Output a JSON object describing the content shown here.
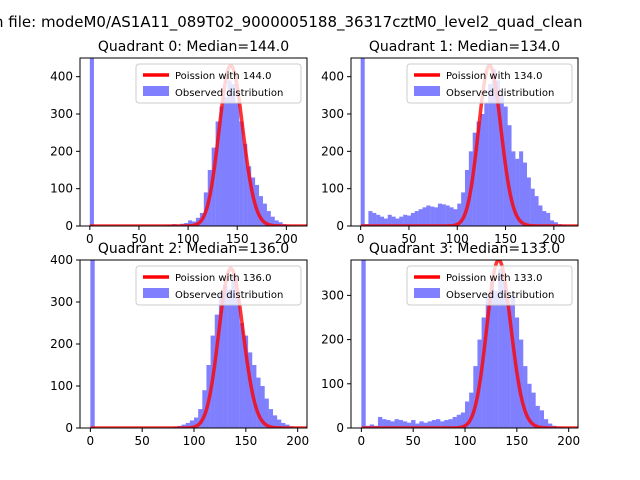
{
  "suptitle": "n file: modeM0/AS1A11_089T02_9000005188_36317cztM0_level2_quad_clean",
  "colors": {
    "observed": "#8080ff",
    "poisson": "#ff0000",
    "poisson_alpha": 0.8
  },
  "chart_data": [
    {
      "type": "bar",
      "title": "Quadrant 0: Median=144.0",
      "legend": [
        "Poission with 144.0",
        "Observed distribution"
      ],
      "legend_loc": "upper right",
      "median": 144.0,
      "poisson_peak": 430,
      "xlim": [
        -10,
        221
      ],
      "ylim": [
        0,
        450
      ],
      "xticks": [
        0,
        50,
        100,
        150,
        200
      ],
      "yticks": [
        0,
        100,
        200,
        300,
        400
      ],
      "bin_edges": [
        0,
        4,
        8,
        12,
        16,
        20,
        24,
        28,
        32,
        36,
        40,
        44,
        48,
        52,
        56,
        60,
        64,
        68,
        72,
        76,
        80,
        84,
        88,
        92,
        96,
        100,
        104,
        108,
        112,
        116,
        120,
        124,
        128,
        132,
        136,
        140,
        144,
        148,
        152,
        156,
        160,
        164,
        168,
        172,
        176,
        180,
        184,
        188,
        192,
        196,
        200,
        204,
        208,
        212
      ],
      "counts": [
        450,
        0,
        0,
        0,
        0,
        0,
        0,
        0,
        0,
        0,
        0,
        0,
        0,
        0,
        0,
        0,
        0,
        0,
        0,
        2,
        3,
        5,
        4,
        6,
        8,
        15,
        12,
        22,
        35,
        90,
        150,
        210,
        280,
        320,
        345,
        390,
        380,
        330,
        280,
        220,
        160,
        130,
        110,
        80,
        60,
        40,
        25,
        15,
        10,
        5,
        3,
        1,
        1
      ]
    },
    {
      "type": "bar",
      "title": "Quadrant 1: Median=134.0",
      "legend": [
        "Poission with 134.0",
        "Observed distribution"
      ],
      "legend_loc": "upper right",
      "median": 134.0,
      "poisson_peak": 430,
      "xlim": [
        -10,
        225
      ],
      "ylim": [
        0,
        450
      ],
      "xticks": [
        0,
        50,
        100,
        150,
        200
      ],
      "yticks": [
        0,
        100,
        200,
        300,
        400
      ],
      "bin_edges": [
        0,
        4,
        8,
        12,
        16,
        20,
        24,
        28,
        32,
        36,
        40,
        44,
        48,
        52,
        56,
        60,
        64,
        68,
        72,
        76,
        80,
        84,
        88,
        92,
        96,
        100,
        104,
        108,
        112,
        116,
        120,
        124,
        128,
        132,
        136,
        140,
        144,
        148,
        152,
        156,
        160,
        164,
        168,
        172,
        176,
        180,
        184,
        188,
        192,
        196,
        200,
        204,
        208,
        212,
        216
      ],
      "counts": [
        450,
        5,
        40,
        35,
        30,
        25,
        20,
        30,
        25,
        20,
        25,
        30,
        28,
        35,
        40,
        45,
        50,
        55,
        52,
        50,
        60,
        58,
        55,
        50,
        45,
        60,
        90,
        150,
        200,
        250,
        280,
        300,
        330,
        380,
        420,
        390,
        350,
        320,
        270,
        200,
        180,
        200,
        170,
        130,
        100,
        80,
        55,
        40,
        35,
        15,
        10,
        5,
        3,
        2
      ]
    },
    {
      "type": "bar",
      "title": "Quadrant 2: Median=136.0",
      "legend": [
        "Poission with 136.0",
        "Observed distribution"
      ],
      "legend_loc": "upper right",
      "median": 136.0,
      "poisson_peak": 380,
      "xlim": [
        -10,
        209
      ],
      "ylim": [
        0,
        400
      ],
      "xticks": [
        0,
        50,
        100,
        150,
        200
      ],
      "yticks": [
        0,
        100,
        200,
        300,
        400
      ],
      "bin_edges": [
        0,
        4,
        8,
        12,
        16,
        20,
        24,
        28,
        32,
        36,
        40,
        44,
        48,
        52,
        56,
        60,
        64,
        68,
        72,
        76,
        80,
        84,
        88,
        92,
        96,
        100,
        104,
        108,
        112,
        116,
        120,
        124,
        128,
        132,
        136,
        140,
        144,
        148,
        152,
        156,
        160,
        164,
        168,
        172,
        176,
        180,
        184,
        188,
        192,
        196,
        200
      ],
      "counts": [
        400,
        0,
        0,
        0,
        0,
        0,
        0,
        0,
        0,
        0,
        0,
        0,
        0,
        0,
        0,
        0,
        0,
        0,
        0,
        0,
        3,
        5,
        8,
        12,
        18,
        25,
        45,
        90,
        150,
        220,
        270,
        320,
        340,
        330,
        360,
        310,
        250,
        220,
        180,
        150,
        120,
        100,
        70,
        45,
        30,
        20,
        12,
        8,
        4,
        2
      ]
    },
    {
      "type": "bar",
      "title": "Quadrant 3: Median=133.0",
      "legend": [
        "Poission with 133.0",
        "Observed distribution"
      ],
      "legend_loc": "upper right",
      "median": 133.0,
      "poisson_peak": 380,
      "xlim": [
        -10,
        209
      ],
      "ylim": [
        0,
        380
      ],
      "xticks": [
        0,
        50,
        100,
        150,
        200
      ],
      "yticks": [
        0,
        100,
        200,
        300
      ],
      "bin_edges": [
        0,
        4,
        8,
        12,
        16,
        20,
        24,
        28,
        32,
        36,
        40,
        44,
        48,
        52,
        56,
        60,
        64,
        68,
        72,
        76,
        80,
        84,
        88,
        92,
        96,
        100,
        104,
        108,
        112,
        116,
        120,
        124,
        128,
        132,
        136,
        140,
        144,
        148,
        152,
        156,
        160,
        164,
        168,
        172,
        176,
        180,
        184,
        188,
        192,
        196
      ],
      "counts": [
        380,
        5,
        8,
        5,
        25,
        20,
        18,
        15,
        20,
        18,
        15,
        12,
        18,
        10,
        15,
        12,
        15,
        18,
        20,
        15,
        18,
        20,
        25,
        30,
        35,
        60,
        80,
        140,
        200,
        250,
        300,
        330,
        310,
        360,
        330,
        280,
        300,
        250,
        200,
        140,
        100,
        80,
        50,
        40,
        20,
        10,
        5,
        3,
        2
      ]
    }
  ]
}
